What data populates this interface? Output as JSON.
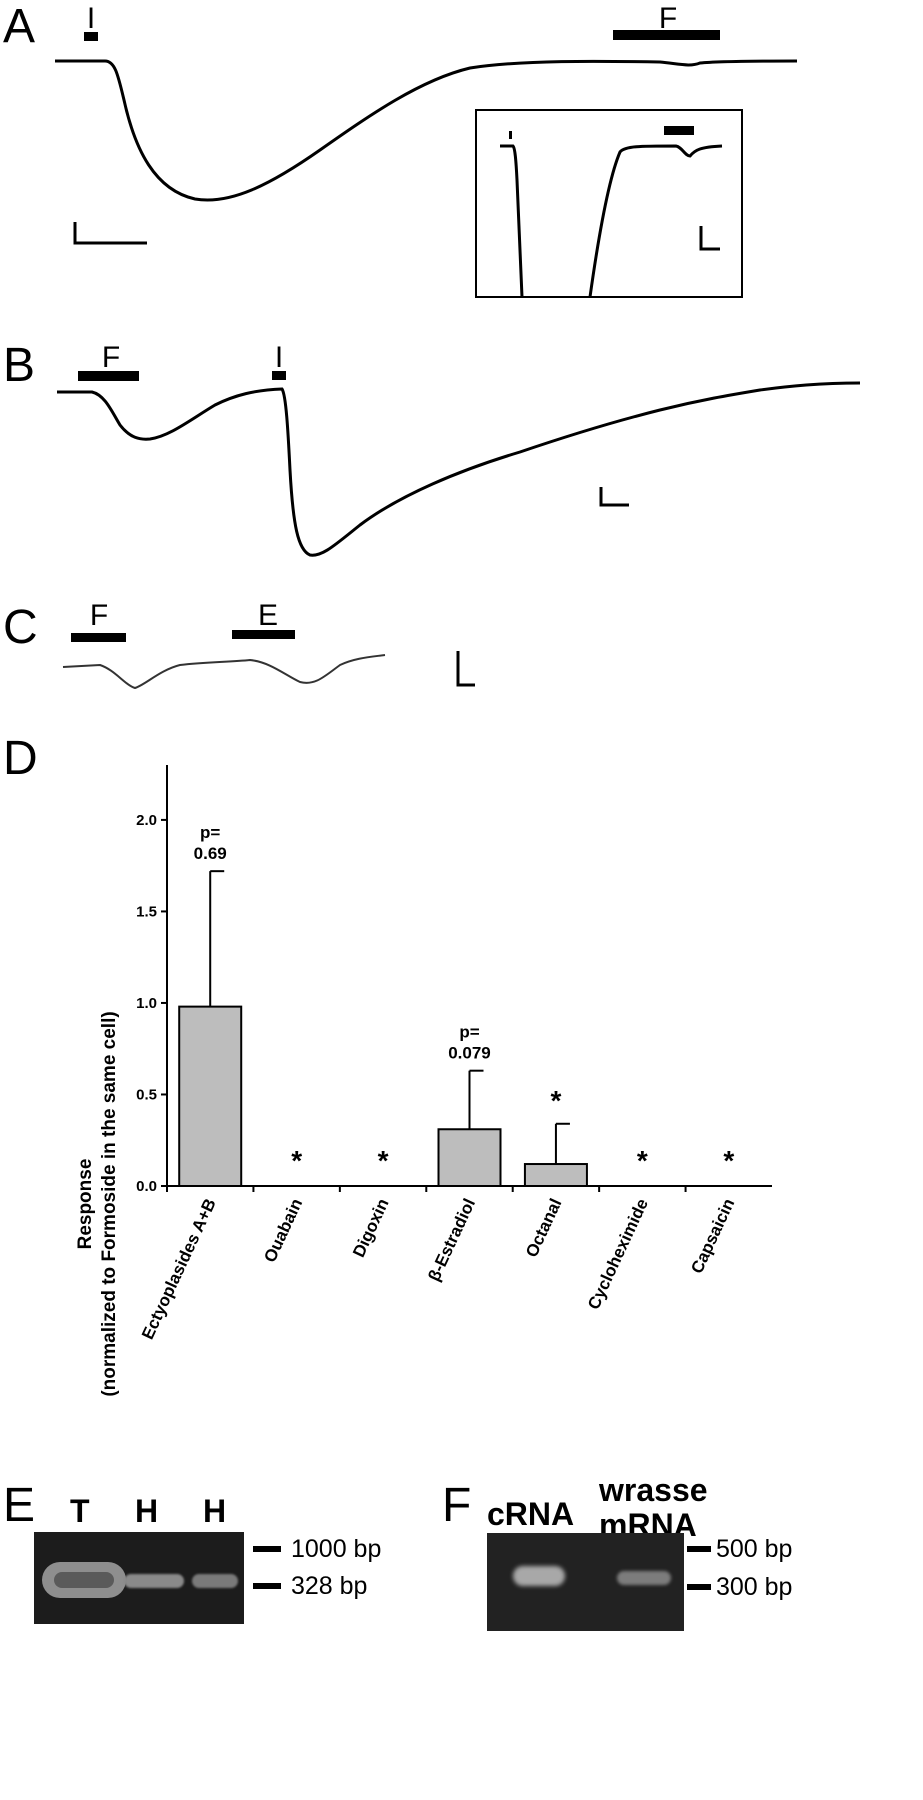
{
  "panels": {
    "A": {
      "letter": "A",
      "stim_i": "I",
      "stim_f": "F"
    },
    "B": {
      "letter": "B",
      "stim_f": "F",
      "stim_i": "I"
    },
    "C": {
      "letter": "C",
      "stim_f": "F",
      "stim_e": "E"
    },
    "D": {
      "letter": "D"
    },
    "E": {
      "letter": "E",
      "lanes": [
        "T",
        "H",
        "H"
      ],
      "markers": [
        "1000 bp",
        "328 bp"
      ]
    },
    "F": {
      "letter": "F",
      "lane_1": "cRNA",
      "lane_2_line1": "wrasse",
      "lane_2_line2": "mRNA",
      "markers": [
        "500 bp",
        "300 bp"
      ]
    }
  },
  "chart_data": {
    "type": "bar",
    "ylabel_line1": "Response",
    "ylabel_line2": "(normalized to Formoside in the same cell)",
    "ylim": [
      0,
      2.3
    ],
    "yticks": [
      "0.0",
      "0.5",
      "1.0",
      "1.5",
      "2.0"
    ],
    "ytick_values": [
      0,
      0.5,
      1.0,
      1.5,
      2.0
    ],
    "categories": [
      "Ectyoplasides A+B",
      "Ouabain",
      "Digoxin",
      "β-Estradiol",
      "Octanal",
      "Cycloheximide",
      "Capsaicin"
    ],
    "values": [
      0.98,
      0,
      0,
      0.31,
      0.12,
      0,
      0
    ],
    "errors": [
      0.74,
      0,
      0,
      0.32,
      0.22,
      0,
      0
    ],
    "annotations": [
      "p=\n0.69",
      "*",
      "*",
      "p=\n0.079",
      "*",
      "*",
      "*"
    ],
    "bar_color": "#bdbdbd"
  }
}
